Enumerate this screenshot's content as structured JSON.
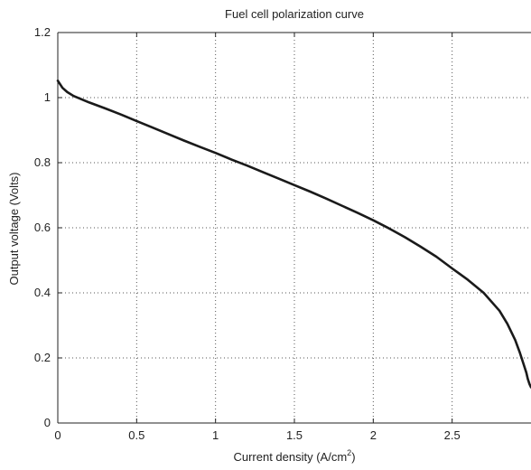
{
  "chart_data": {
    "type": "line",
    "title": "Fuel cell polarization curve",
    "xlabel": "Current density (A/cm",
    "xlabel_sup": "2",
    "xlabel_suffix": ")",
    "ylabel": "Output voltage (Volts)",
    "xlim": [
      0,
      3
    ],
    "ylim": [
      0,
      1.2
    ],
    "xticks": [
      0,
      0.5,
      1,
      1.5,
      2,
      2.5
    ],
    "xtick_labels": [
      "0",
      "0.5",
      "1",
      "1.5",
      "2",
      "2.5"
    ],
    "yticks": [
      0,
      0.2,
      0.4,
      0.6,
      0.8,
      1,
      1.2
    ],
    "ytick_labels": [
      "0",
      "0.2",
      "0.4",
      "0.6",
      "0.8",
      "1",
      "1.2"
    ],
    "grid": true,
    "line_color": "#1a1a1a",
    "series": [
      {
        "x": [
          0.0,
          0.03,
          0.06,
          0.1,
          0.15,
          0.2,
          0.3,
          0.4,
          0.5,
          0.6,
          0.7,
          0.8,
          0.9,
          1.0,
          1.1,
          1.2,
          1.3,
          1.4,
          1.5,
          1.6,
          1.7,
          1.8,
          1.9,
          2.0,
          2.1,
          2.2,
          2.3,
          2.4,
          2.5,
          2.6,
          2.7,
          2.8,
          2.85,
          2.9,
          2.93,
          2.95,
          2.97,
          2.98,
          2.99,
          3.0
        ],
        "y": [
          1.052,
          1.03,
          1.017,
          1.005,
          0.995,
          0.985,
          0.967,
          0.948,
          0.928,
          0.908,
          0.888,
          0.868,
          0.849,
          0.83,
          0.81,
          0.791,
          0.771,
          0.751,
          0.731,
          0.711,
          0.69,
          0.668,
          0.646,
          0.623,
          0.598,
          0.571,
          0.542,
          0.511,
          0.475,
          0.44,
          0.4,
          0.345,
          0.305,
          0.255,
          0.215,
          0.185,
          0.155,
          0.135,
          0.12,
          0.11
        ]
      }
    ]
  }
}
